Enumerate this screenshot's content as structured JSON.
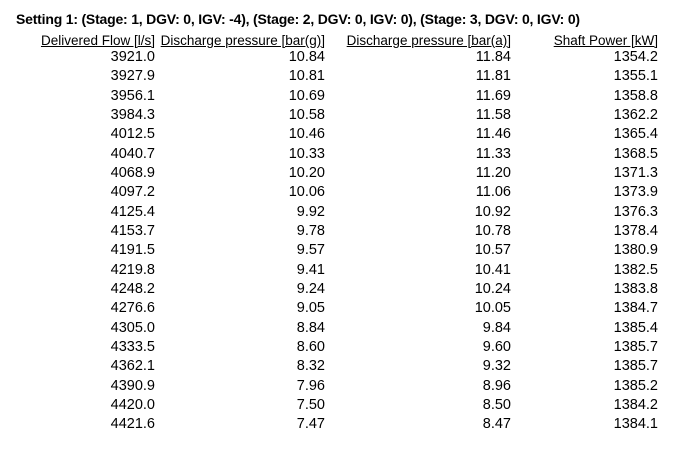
{
  "title": "Setting 1: (Stage: 1, DGV: 0, IGV: -4), (Stage: 2, DGV: 0, IGV: 0), (Stage: 3, DGV: 0, IGV: 0)",
  "colors": {
    "background": "#ffffff",
    "text": "#000000"
  },
  "table": {
    "columns": [
      "Delivered Flow [l/s]",
      "Discharge pressure [bar(g)]",
      "Discharge pressure [bar(a)]",
      "Shaft Power [kW]"
    ],
    "rows": [
      [
        "3921.0",
        "10.84",
        "11.84",
        "1354.2"
      ],
      [
        "3927.9",
        "10.81",
        "11.81",
        "1355.1"
      ],
      [
        "3956.1",
        "10.69",
        "11.69",
        "1358.8"
      ],
      [
        "3984.3",
        "10.58",
        "11.58",
        "1362.2"
      ],
      [
        "4012.5",
        "10.46",
        "11.46",
        "1365.4"
      ],
      [
        "4040.7",
        "10.33",
        "11.33",
        "1368.5"
      ],
      [
        "4068.9",
        "10.20",
        "11.20",
        "1371.3"
      ],
      [
        "4097.2",
        "10.06",
        "11.06",
        "1373.9"
      ],
      [
        "4125.4",
        "9.92",
        "10.92",
        "1376.3"
      ],
      [
        "4153.7",
        "9.78",
        "10.78",
        "1378.4"
      ],
      [
        "4191.5",
        "9.57",
        "10.57",
        "1380.9"
      ],
      [
        "4219.8",
        "9.41",
        "10.41",
        "1382.5"
      ],
      [
        "4248.2",
        "9.24",
        "10.24",
        "1383.8"
      ],
      [
        "4276.6",
        "9.05",
        "10.05",
        "1384.7"
      ],
      [
        "4305.0",
        "8.84",
        "9.84",
        "1385.4"
      ],
      [
        "4333.5",
        "8.60",
        "9.60",
        "1385.7"
      ],
      [
        "4362.1",
        "8.32",
        "9.32",
        "1385.7"
      ],
      [
        "4390.9",
        "7.96",
        "8.96",
        "1385.2"
      ],
      [
        "4420.0",
        "7.50",
        "8.50",
        "1384.2"
      ],
      [
        "4421.6",
        "7.47",
        "8.47",
        "1384.1"
      ]
    ]
  }
}
